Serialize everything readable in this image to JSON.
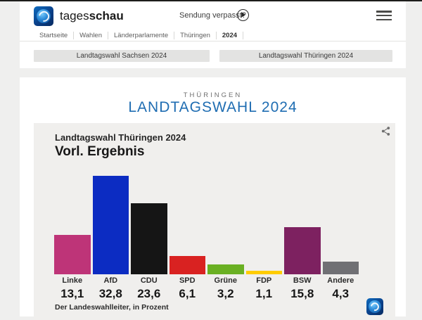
{
  "brand": {
    "logo": "tagesschau-globe-icon",
    "name_regular": "tages",
    "name_bold": "schau"
  },
  "header": {
    "missed_show_label": "Sendung verpasst?",
    "play_icon": "play-circle-icon",
    "menu_icon": "hamburger-menu-icon"
  },
  "breadcrumb": {
    "items": [
      "Startseite",
      "Wahlen",
      "Länderparlamente",
      "Thüringen",
      "2024"
    ]
  },
  "nav_buttons": {
    "sachsen": "Landtagswahl Sachsen 2024",
    "thueringen": "Landtagswahl Thüringen 2024"
  },
  "page": {
    "kicker": "THÜRINGEN",
    "title": "LANDTAGSWAHL 2024"
  },
  "chart_data": {
    "type": "bar",
    "title": "Landtagswahl Thüringen 2024",
    "subtitle": "Vorl. Ergebnis",
    "source_note": "Der Landeswahlleiter, in Prozent",
    "unit": "percent",
    "categories": [
      "Linke",
      "AfD",
      "CDU",
      "SPD",
      "Grüne",
      "FDP",
      "BSW",
      "Andere"
    ],
    "values": [
      13.1,
      32.8,
      23.6,
      6.1,
      3.2,
      1.1,
      15.8,
      4.3
    ],
    "value_labels": [
      "13,1",
      "32,8",
      "23,6",
      "6,1",
      "3,2",
      "1,1",
      "15,8",
      "4,3"
    ],
    "bar_colors": [
      "#BE3478",
      "#0C2CC2",
      "#151515",
      "#D92221",
      "#6AB023",
      "#FFCC00",
      "#7D2160",
      "#707074"
    ],
    "ylim": [
      0,
      35
    ],
    "grid": false,
    "legend": false
  },
  "colors": {
    "accent_blue": "#1F6DB2",
    "page_bg": "#EFEFEE",
    "card_bg": "#F0EFED"
  }
}
